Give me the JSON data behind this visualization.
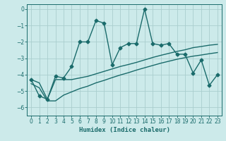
{
  "xlabel": "Humidex (Indice chaleur)",
  "background_color": "#cceaea",
  "grid_color": "#aacece",
  "line_color": "#1a6b6b",
  "xlim": [
    -0.5,
    23.5
  ],
  "ylim": [
    -6.5,
    0.3
  ],
  "yticks": [
    0,
    -1,
    -2,
    -3,
    -4,
    -5,
    -6
  ],
  "xticks": [
    0,
    1,
    2,
    3,
    4,
    5,
    6,
    7,
    8,
    9,
    10,
    11,
    12,
    13,
    14,
    15,
    16,
    17,
    18,
    19,
    20,
    21,
    22,
    23
  ],
  "main_line_x": [
    0,
    1,
    2,
    3,
    4,
    5,
    6,
    7,
    8,
    9,
    10,
    11,
    12,
    13,
    14,
    15,
    16,
    17,
    18,
    19,
    20,
    21,
    22,
    23
  ],
  "main_line_y": [
    -4.3,
    -5.3,
    -5.5,
    -4.1,
    -4.2,
    -3.5,
    -2.0,
    -2.0,
    -0.7,
    -0.85,
    -3.4,
    -2.35,
    -2.1,
    -2.1,
    0.0,
    -2.1,
    -2.2,
    -2.1,
    -2.75,
    -2.75,
    -3.9,
    -3.1,
    -4.65,
    -4.0
  ],
  "lower_line1_x": [
    0,
    1,
    2,
    3,
    4,
    5,
    6,
    7,
    8,
    9,
    10,
    11,
    12,
    13,
    14,
    15,
    16,
    17,
    18,
    19,
    20,
    21,
    22,
    23
  ],
  "lower_line1_y": [
    -4.3,
    -4.5,
    -5.5,
    -4.3,
    -4.3,
    -4.3,
    -4.2,
    -4.1,
    -3.95,
    -3.8,
    -3.65,
    -3.5,
    -3.38,
    -3.25,
    -3.1,
    -2.95,
    -2.82,
    -2.7,
    -2.58,
    -2.48,
    -2.35,
    -2.28,
    -2.2,
    -2.15
  ],
  "lower_line2_x": [
    0,
    1,
    2,
    3,
    4,
    5,
    6,
    7,
    8,
    9,
    10,
    11,
    12,
    13,
    14,
    15,
    16,
    17,
    18,
    19,
    20,
    21,
    22,
    23
  ],
  "lower_line2_y": [
    -4.55,
    -4.8,
    -5.6,
    -5.6,
    -5.25,
    -5.05,
    -4.85,
    -4.7,
    -4.5,
    -4.35,
    -4.18,
    -4.02,
    -3.88,
    -3.72,
    -3.58,
    -3.44,
    -3.3,
    -3.18,
    -3.06,
    -2.96,
    -2.87,
    -2.8,
    -2.72,
    -2.65
  ],
  "marker_size": 2.5,
  "line_width": 1.0,
  "xlabel_fontsize": 6.5,
  "tick_fontsize": 5.5
}
